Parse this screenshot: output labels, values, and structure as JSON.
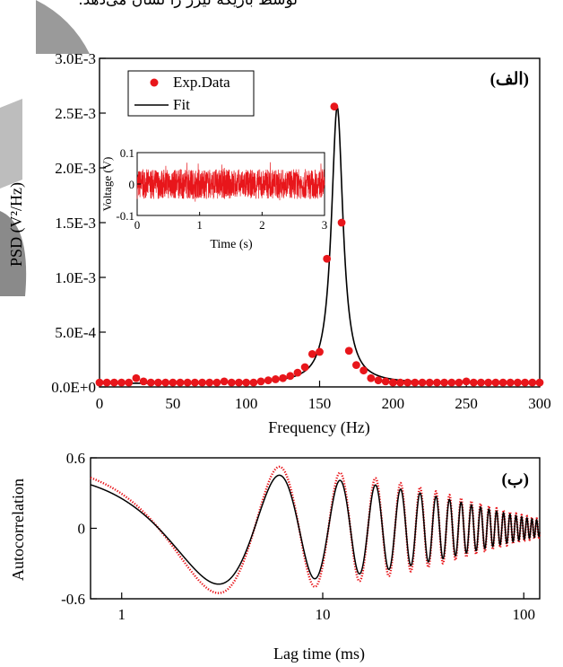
{
  "caption_fragment": "توسط باریکه لیزر را نشان می‌دهد.",
  "colors": {
    "data": "#e8161b",
    "fit": "#000000",
    "axis": "#000000"
  },
  "chart_data": [
    {
      "type": "scatter",
      "panel_label": "(الف)",
      "xlabel": "Frequency (Hz)",
      "ylabel": "PSD (V²/Hz)",
      "xlim": [
        0,
        300
      ],
      "ylim": [
        0,
        0.003
      ],
      "x_ticks": [
        0,
        50,
        100,
        150,
        200,
        250,
        300
      ],
      "x_tick_labels": [
        "0",
        "50",
        "100",
        "150",
        "200",
        "250",
        "300"
      ],
      "y_ticks": [
        0,
        0.0005,
        0.001,
        0.0015,
        0.002,
        0.0025,
        0.003
      ],
      "y_tick_labels": [
        "0.0E+0",
        "5.0E-4",
        "1.0E-3",
        "1.5E-3",
        "2.0E-3",
        "2.5E-3",
        "3.0E-3"
      ],
      "legend": {
        "position": "top-left",
        "entries": [
          "Exp.Data",
          "Fit"
        ]
      },
      "series": [
        {
          "name": "Exp.Data",
          "kind": "markers",
          "x": [
            0,
            5,
            10,
            15,
            20,
            25,
            30,
            35,
            40,
            45,
            50,
            55,
            60,
            65,
            70,
            75,
            80,
            85,
            90,
            95,
            100,
            105,
            110,
            115,
            120,
            125,
            130,
            135,
            140,
            145,
            150,
            155,
            160,
            165,
            170,
            175,
            180,
            185,
            190,
            195,
            200,
            205,
            210,
            215,
            220,
            225,
            230,
            235,
            240,
            245,
            250,
            255,
            260,
            265,
            270,
            275,
            280,
            285,
            290,
            295,
            300
          ],
          "y": [
            4e-05,
            4e-05,
            4e-05,
            4e-05,
            4e-05,
            8e-05,
            5e-05,
            4e-05,
            4e-05,
            4e-05,
            4e-05,
            4e-05,
            4e-05,
            4e-05,
            4e-05,
            4e-05,
            4e-05,
            5e-05,
            4e-05,
            4e-05,
            4e-05,
            4e-05,
            5e-05,
            6e-05,
            7e-05,
            8e-05,
            0.0001,
            0.00013,
            0.00018,
            0.0003,
            0.00032,
            0.00117,
            0.00256,
            0.0015,
            0.00033,
            0.0002,
            0.00015,
            8e-05,
            6e-05,
            5e-05,
            4e-05,
            4e-05,
            4e-05,
            4e-05,
            4e-05,
            4e-05,
            4e-05,
            4e-05,
            4e-05,
            4e-05,
            5e-05,
            4e-05,
            4e-05,
            4e-05,
            4e-05,
            4e-05,
            4e-05,
            4e-05,
            4e-05,
            4e-05,
            4e-05
          ]
        },
        {
          "name": "Fit",
          "kind": "line",
          "model": "lorentzian",
          "center": 162,
          "gamma": 4.8,
          "amplitude": 0.00256,
          "baseline": 3e-05
        }
      ],
      "inset": {
        "xlabel": "Time (s)",
        "ylabel": "Voltage (V)",
        "xlim": [
          0,
          3
        ],
        "ylim": [
          -0.1,
          0.1
        ],
        "x_ticks": [
          0,
          1,
          2,
          3
        ],
        "x_tick_labels": [
          "0",
          "1",
          "2",
          "3"
        ],
        "y_ticks": [
          -0.1,
          0,
          0.1
        ],
        "y_tick_labels": [
          "-0.1",
          "0",
          "0.1"
        ],
        "signal": "noise band between about -0.05 and 0.05 V"
      }
    },
    {
      "type": "line",
      "panel_label": "(ب)",
      "xlabel": "Lag time (ms)",
      "ylabel": "Autocorrelation",
      "xscale": "log",
      "xlim": [
        0.7,
        120
      ],
      "ylim": [
        -0.6,
        0.6
      ],
      "x_ticks": [
        1,
        10,
        100
      ],
      "x_tick_labels": [
        "1",
        "10",
        "100"
      ],
      "y_ticks": [
        -0.6,
        0,
        0.6
      ],
      "y_tick_labels": [
        "-0.6",
        "0",
        "0.6"
      ],
      "series": [
        {
          "name": "",
          "kind": "dotted",
          "color": "#e8161b",
          "model": "damped_cosine",
          "amplitude": 0.58,
          "period_ms": 6.1,
          "decay_ms": 60
        },
        {
          "name": "",
          "kind": "line",
          "color": "#000000",
          "model": "damped_cosine",
          "amplitude": 0.5,
          "period_ms": 6.1,
          "decay_ms": 60
        }
      ]
    }
  ]
}
